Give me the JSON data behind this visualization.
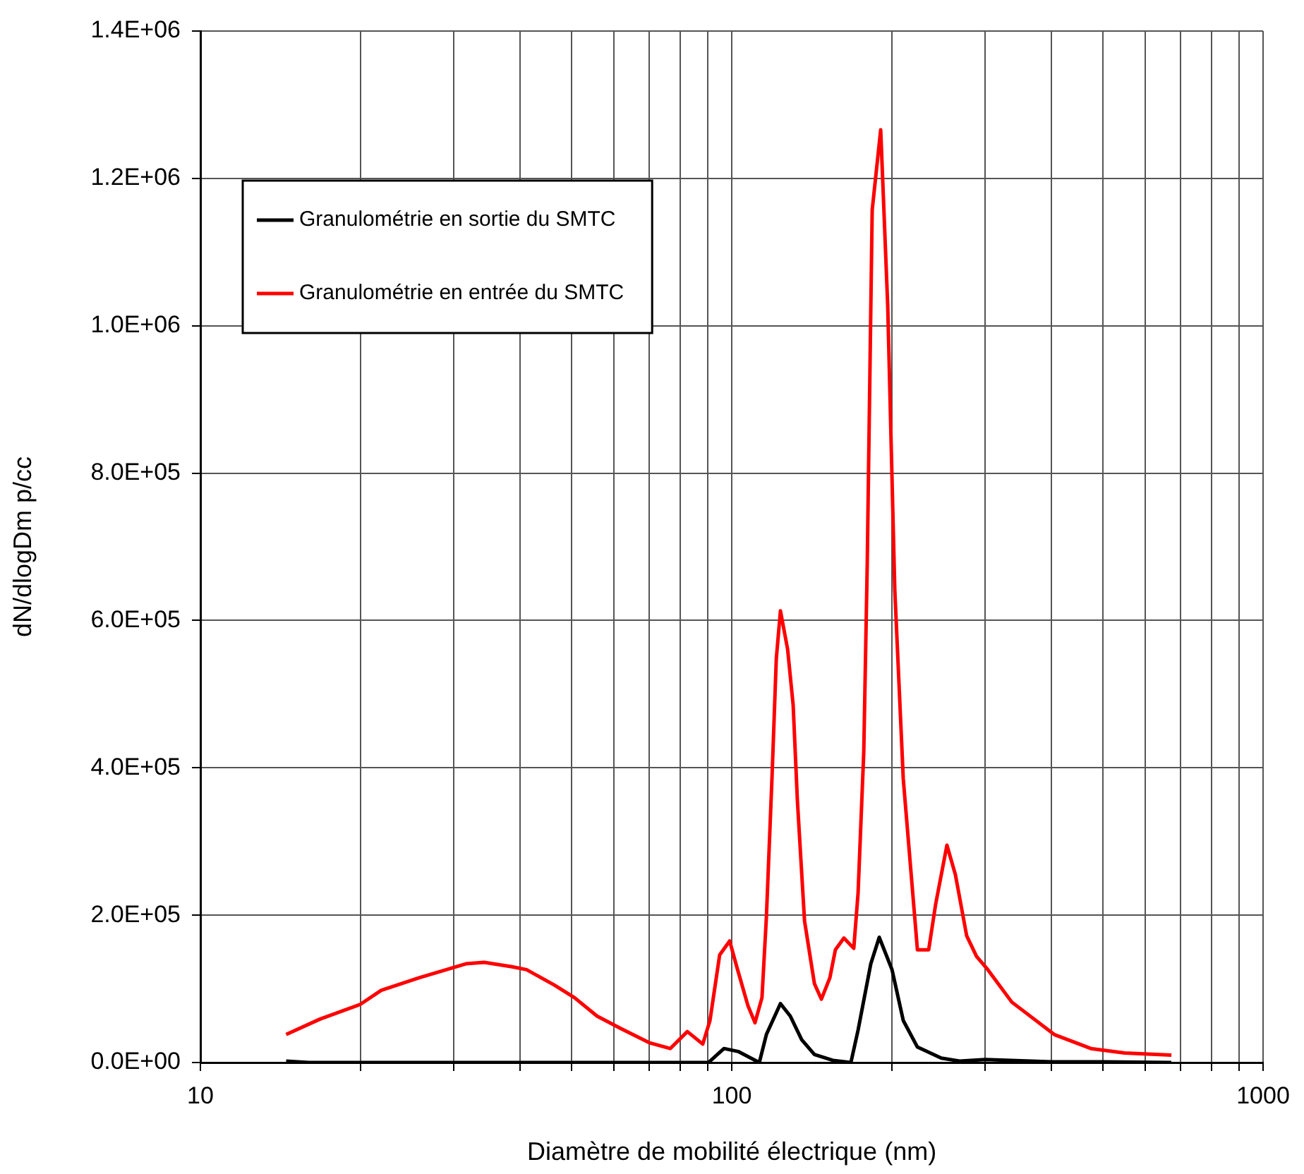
{
  "chart_data": {
    "type": "line",
    "xlabel": "Diamètre de mobilité électrique (nm)",
    "ylabel": "dN/dlogDm p/cc",
    "log": "x",
    "xlim": [
      10,
      1000
    ],
    "xticks": [
      10,
      {
        "value": 20,
        "label": null
      },
      {
        "value": 30,
        "label": null
      },
      {
        "value": 40,
        "label": null
      },
      {
        "value": 50,
        "label": null
      },
      {
        "value": 60,
        "label": null
      },
      {
        "value": 70,
        "label": null
      },
      {
        "value": 80,
        "label": null
      },
      {
        "value": 90,
        "label": null
      },
      100,
      {
        "value": 200,
        "label": null
      },
      {
        "value": 300,
        "label": null
      },
      {
        "value": 400,
        "label": null
      },
      {
        "value": 500,
        "label": null
      },
      {
        "value": 600,
        "label": null
      },
      {
        "value": 700,
        "label": null
      },
      {
        "value": 800,
        "label": null
      },
      {
        "value": 900,
        "label": null
      },
      1000
    ],
    "ylim": [
      0,
      1400000
    ],
    "yticks": [
      {
        "value": 0,
        "label": "0.0E+00"
      },
      {
        "value": 200000,
        "label": "2.0E+05"
      },
      {
        "value": 400000,
        "label": "4.0E+05"
      },
      {
        "value": 600000,
        "label": "6.0E+05"
      },
      {
        "value": 800000,
        "label": "8.0E+05"
      },
      {
        "value": 1000000,
        "label": "1.0E+06"
      },
      {
        "value": 1200000,
        "label": "1.2E+06"
      },
      {
        "value": 1400000,
        "label": "1.4E+06"
      }
    ],
    "grid": true,
    "legend": "top left",
    "marker": "none",
    "line_style": "solid",
    "series": [
      {
        "name": "Granulométrie en sortie du SMTC",
        "color": "#000000",
        "x": [
          14.5,
          16,
          20,
          30,
          40,
          50,
          60,
          70,
          79,
          90.4,
          96.7,
          102.8,
          112.7,
          116.2,
          123.5,
          128.9,
          135.4,
          143.1,
          155,
          167.6,
          172.9,
          182.7,
          189.5,
          200.3,
          210.3,
          223.6,
          248,
          268.5,
          300,
          400,
          500,
          672
        ],
        "values": [
          2000,
          0,
          0,
          0,
          0,
          0,
          0,
          0,
          0,
          0,
          19000,
          15000,
          0,
          38000,
          80000,
          63000,
          31000,
          11000,
          3000,
          0,
          44000,
          134000,
          170000,
          126000,
          57000,
          21000,
          6000,
          2000,
          4000,
          1000,
          1000,
          0
        ]
      },
      {
        "name": "Granulométrie en entrée du SMTC",
        "color": "#ff0000",
        "x": [
          14.5,
          16.8,
          20.0,
          21.9,
          25.8,
          31.6,
          34.2,
          38.6,
          41.1,
          46.4,
          50.6,
          55.8,
          61.9,
          69.9,
          76.6,
          82.5,
          88.2,
          91.0,
          94.9,
          99.1,
          102.2,
          107.3,
          110.6,
          114.0,
          116.2,
          119.1,
          121.3,
          123.5,
          127.4,
          130.5,
          132.9,
          137.1,
          143.1,
          147.5,
          153.0,
          156.7,
          162.6,
          169.7,
          172.9,
          177.2,
          179.9,
          181.0,
          183.8,
          190.7,
          196.6,
          202.7,
          210.3,
          223.6,
          234.8,
          242.0,
          254.1,
          263.6,
          276.8,
          288.9,
          303.4,
          336.6,
          404.6,
          474.2,
          549.2,
          672.2
        ],
        "values": [
          38000,
          59000,
          79000,
          98000,
          115000,
          134000,
          136000,
          130000,
          126000,
          105000,
          88000,
          63000,
          46000,
          27000,
          19000,
          42000,
          25000,
          57000,
          146000,
          165000,
          130000,
          77000,
          54000,
          88000,
          197000,
          389000,
          548000,
          613000,
          561000,
          485000,
          356000,
          192000,
          107000,
          86000,
          115000,
          153000,
          169000,
          155000,
          230000,
          421000,
          676000,
          814000,
          1157000,
          1266000,
          1027000,
          642000,
          385000,
          153000,
          153000,
          215000,
          295000,
          255000,
          172000,
          144000,
          126000,
          82000,
          38000,
          19000,
          13000,
          10000
        ]
      }
    ]
  }
}
